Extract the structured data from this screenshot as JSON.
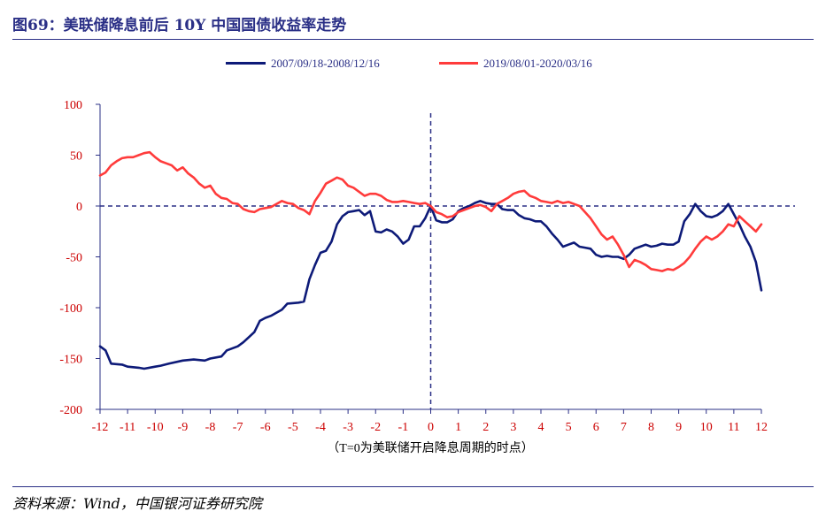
{
  "header": {
    "title": "图69：美联储降息前后 10Y 中国国债收益率走势"
  },
  "footer": {
    "source": "资料来源：Wind，中国银河证券研究院"
  },
  "colors": {
    "title": "#2a2f86",
    "series_1": "#0d1a78",
    "series_2": "#ff3b3b",
    "tick_text": "#cc0000",
    "axis": "#2a2f86"
  },
  "chart_data": {
    "type": "line",
    "title": "",
    "xlabel": "（T=0为美联储开启降息周期的时点）",
    "ylabel": "",
    "xlim": [
      -12,
      12
    ],
    "ylim": [
      -200,
      100
    ],
    "xticks": [
      -12,
      -11,
      -10,
      -9,
      -8,
      -7,
      -6,
      -5,
      -4,
      -3,
      -2,
      -1,
      0,
      1,
      2,
      3,
      4,
      5,
      6,
      7,
      8,
      9,
      10,
      11,
      12
    ],
    "yticks": [
      100,
      50,
      0,
      -50,
      -100,
      -150,
      -200
    ],
    "grid": false,
    "legend_position": "top-center",
    "reference_lines": {
      "horizontal_y": 0,
      "vertical_x": 0,
      "style": "dashed"
    },
    "series": [
      {
        "name": "2007/09/18-2008/12/16",
        "color": "#0d1a78",
        "x": [
          -12.0,
          -11.8,
          -11.6,
          -11.2,
          -11.0,
          -10.6,
          -10.4,
          -10.0,
          -9.8,
          -9.5,
          -9.0,
          -8.6,
          -8.2,
          -8.0,
          -7.6,
          -7.4,
          -7.0,
          -6.8,
          -6.4,
          -6.2,
          -6.0,
          -5.8,
          -5.4,
          -5.2,
          -4.8,
          -4.6,
          -4.4,
          -4.2,
          -4.0,
          -3.8,
          -3.6,
          -3.4,
          -3.2,
          -3.0,
          -2.8,
          -2.6,
          -2.4,
          -2.2,
          -2.0,
          -1.8,
          -1.6,
          -1.4,
          -1.2,
          -1.0,
          -0.8,
          -0.6,
          -0.4,
          -0.2,
          0.0,
          0.2,
          0.4,
          0.6,
          0.8,
          1.0,
          1.2,
          1.4,
          1.6,
          1.8,
          2.0,
          2.2,
          2.4,
          2.6,
          2.8,
          3.0,
          3.2,
          3.4,
          3.6,
          3.8,
          4.0,
          4.2,
          4.4,
          4.6,
          4.8,
          5.0,
          5.2,
          5.4,
          5.6,
          5.8,
          6.0,
          6.2,
          6.4,
          6.6,
          6.8,
          7.0,
          7.2,
          7.4,
          7.6,
          7.8,
          8.0,
          8.2,
          8.4,
          8.6,
          8.8,
          9.0,
          9.2,
          9.4,
          9.6,
          9.8,
          10.0,
          10.2,
          10.4,
          10.6,
          10.8,
          11.0,
          11.2,
          11.4,
          11.6,
          11.8,
          12.0
        ],
        "values": [
          -138,
          -142,
          -155,
          -156,
          -158,
          -159,
          -160,
          -158,
          -157,
          -155,
          -152,
          -151,
          -152,
          -150,
          -148,
          -142,
          -138,
          -134,
          -124,
          -113,
          -110,
          -108,
          -102,
          -96,
          -95,
          -94,
          -72,
          -58,
          -46,
          -44,
          -35,
          -18,
          -10,
          -6,
          -5,
          -4,
          -9,
          -5,
          -25,
          -26,
          -23,
          -25,
          -30,
          -37,
          -33,
          -20,
          -20,
          -12,
          0,
          -14,
          -16,
          -16,
          -13,
          -5,
          -2,
          0,
          3,
          5,
          3,
          2,
          2,
          -3,
          -4,
          -4,
          -9,
          -12,
          -13,
          -15,
          -15,
          -20,
          -27,
          -33,
          -40,
          -38,
          -36,
          -40,
          -41,
          -42,
          -48,
          -50,
          -49,
          -50,
          -50,
          -52,
          -48,
          -42,
          -40,
          -38,
          -40,
          -39,
          -37,
          -38,
          -38,
          -35,
          -15,
          -8,
          2,
          -5,
          -10,
          -11,
          -9,
          -5,
          2,
          -8,
          -18,
          -30,
          -40,
          -55,
          -83
        ]
      },
      {
        "name": "2019/08/01-2020/03/16",
        "color": "#ff3b3b",
        "x": [
          -12.0,
          -11.8,
          -11.6,
          -11.4,
          -11.2,
          -11.0,
          -10.8,
          -10.6,
          -10.4,
          -10.2,
          -10.0,
          -9.8,
          -9.6,
          -9.4,
          -9.2,
          -9.0,
          -8.8,
          -8.6,
          -8.4,
          -8.2,
          -8.0,
          -7.8,
          -7.6,
          -7.4,
          -7.2,
          -7.0,
          -6.8,
          -6.6,
          -6.4,
          -6.2,
          -6.0,
          -5.8,
          -5.6,
          -5.4,
          -5.2,
          -5.0,
          -4.8,
          -4.6,
          -4.4,
          -4.2,
          -4.0,
          -3.8,
          -3.6,
          -3.4,
          -3.2,
          -3.0,
          -2.8,
          -2.6,
          -2.4,
          -2.2,
          -2.0,
          -1.8,
          -1.6,
          -1.4,
          -1.2,
          -1.0,
          -0.8,
          -0.6,
          -0.4,
          -0.2,
          0.0,
          0.2,
          0.4,
          0.6,
          0.8,
          1.0,
          1.2,
          1.4,
          1.6,
          1.8,
          2.0,
          2.2,
          2.4,
          2.6,
          2.8,
          3.0,
          3.2,
          3.4,
          3.6,
          3.8,
          4.0,
          4.2,
          4.4,
          4.6,
          4.8,
          5.0,
          5.2,
          5.4,
          5.6,
          5.8,
          6.0,
          6.2,
          6.4,
          6.6,
          6.8,
          7.0,
          7.2,
          7.4,
          7.6,
          7.8,
          8.0,
          8.2,
          8.4,
          8.6,
          8.8,
          9.0,
          9.2,
          9.4,
          9.6,
          9.8,
          10.0,
          10.2,
          10.4,
          10.6,
          10.8,
          11.0,
          11.2,
          11.4,
          11.6,
          11.8,
          12.0
        ],
        "values": [
          30,
          33,
          40,
          44,
          47,
          48,
          48,
          50,
          52,
          53,
          48,
          44,
          42,
          40,
          35,
          38,
          32,
          28,
          22,
          18,
          20,
          12,
          8,
          7,
          3,
          2,
          -3,
          -5,
          -6,
          -3,
          -2,
          -1,
          2,
          5,
          3,
          2,
          -2,
          -4,
          -8,
          5,
          13,
          22,
          25,
          28,
          26,
          20,
          18,
          14,
          10,
          12,
          12,
          10,
          6,
          4,
          4,
          5,
          4,
          3,
          2,
          3,
          0,
          -6,
          -8,
          -11,
          -10,
          -6,
          -4,
          -2,
          0,
          1,
          -1,
          -5,
          2,
          5,
          8,
          12,
          14,
          15,
          10,
          8,
          5,
          4,
          3,
          5,
          3,
          4,
          2,
          0,
          -6,
          -12,
          -20,
          -28,
          -33,
          -30,
          -38,
          -48,
          -60,
          -53,
          -55,
          -58,
          -62,
          -63,
          -64,
          -62,
          -63,
          -60,
          -56,
          -50,
          -42,
          -35,
          -30,
          -33,
          -30,
          -25,
          -18,
          -20,
          -10,
          -15,
          -20,
          -25,
          -18
        ]
      }
    ]
  }
}
